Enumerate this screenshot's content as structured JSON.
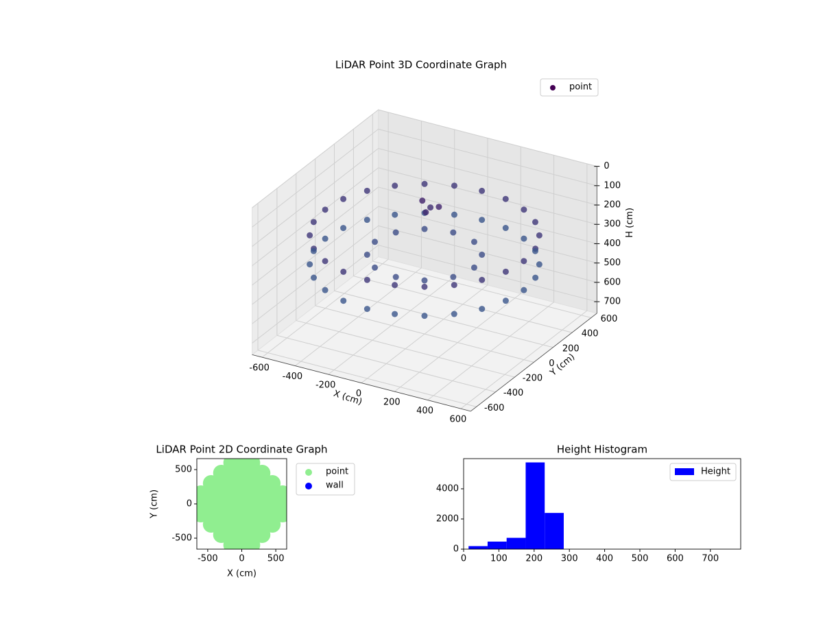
{
  "chart_data": [
    {
      "type": "scatter3d",
      "title": "LiDAR Point 3D Coordinate Graph",
      "xlabel": "X (cm)",
      "ylabel": "Y (cm)",
      "zlabel": "H (cm)",
      "xlim": [
        -660,
        660
      ],
      "ylim": [
        -660,
        660
      ],
      "zlim": [
        0,
        760
      ],
      "zinvert": true,
      "xticks": [
        -600,
        -400,
        -200,
        0,
        200,
        400,
        600
      ],
      "yticks": [
        -600,
        -400,
        -200,
        0,
        200,
        400,
        600
      ],
      "zticks": [
        0,
        100,
        200,
        300,
        400,
        500,
        600,
        700
      ],
      "grid": true,
      "legend": "upper right",
      "cmap": [
        "#440154",
        "#3b528b",
        "#21918c"
      ],
      "series": [
        {
          "name": "point",
          "x": [
            600,
            580,
            520,
            424,
            300,
            155,
            0,
            -155,
            -300,
            -424,
            -520,
            -580,
            -600,
            -580,
            -520,
            -424,
            -300,
            -155,
            0,
            155,
            300,
            424,
            520,
            580,
            600,
            580,
            520,
            424,
            300,
            155,
            0,
            -155,
            -300,
            -424,
            -520,
            -580,
            -600,
            -580,
            -520,
            -424,
            -300,
            -155,
            0,
            155,
            300,
            424,
            520,
            580,
            300,
            260,
            150,
            0,
            -150,
            -260,
            -300,
            -260,
            -150,
            0,
            150,
            260,
            -100,
            -50,
            0,
            -80
          ],
          "y": [
            0,
            155,
            300,
            424,
            520,
            580,
            600,
            580,
            520,
            424,
            300,
            155,
            0,
            -155,
            -300,
            -424,
            -520,
            -580,
            -600,
            -580,
            -520,
            -424,
            -300,
            -155,
            0,
            155,
            300,
            424,
            520,
            580,
            600,
            580,
            520,
            424,
            300,
            155,
            0,
            -155,
            -300,
            -424,
            -520,
            -580,
            -600,
            -580,
            -520,
            -424,
            -300,
            -155,
            0,
            150,
            260,
            300,
            260,
            150,
            0,
            -150,
            -260,
            -300,
            -260,
            -150,
            150,
            100,
            150,
            200
          ],
          "z": [
            250,
            250,
            250,
            250,
            250,
            250,
            250,
            250,
            250,
            250,
            250,
            250,
            250,
            250,
            250,
            250,
            250,
            250,
            250,
            250,
            250,
            250,
            250,
            250,
            400,
            400,
            400,
            400,
            400,
            400,
            400,
            400,
            400,
            400,
            400,
            400,
            400,
            400,
            400,
            400,
            400,
            400,
            400,
            400,
            400,
            400,
            400,
            400,
            350,
            350,
            350,
            350,
            350,
            350,
            350,
            350,
            350,
            350,
            350,
            350,
            150,
            180,
            160,
            200
          ]
        }
      ]
    },
    {
      "type": "scatter",
      "title": "LiDAR Point 2D Coordinate Graph",
      "xlabel": "X (cm)",
      "ylabel": "Y (cm)",
      "xlim": [
        -660,
        660
      ],
      "ylim": [
        -660,
        660
      ],
      "xticks": [
        -500,
        0,
        500
      ],
      "yticks": [
        -500,
        0,
        500
      ],
      "legend": "outside right",
      "series": [
        {
          "name": "point",
          "color": "#90ee90",
          "x": [
            -600,
            -600,
            -600,
            -450,
            -450,
            -450,
            -450,
            -450,
            -300,
            -300,
            -300,
            -300,
            -300,
            -300,
            -300,
            -150,
            -150,
            -150,
            -150,
            -150,
            -150,
            -150,
            -150,
            -150,
            0,
            0,
            0,
            0,
            0,
            0,
            0,
            0,
            0,
            150,
            150,
            150,
            150,
            150,
            150,
            150,
            150,
            150,
            300,
            300,
            300,
            300,
            300,
            300,
            300,
            450,
            450,
            450,
            450,
            450,
            600,
            600,
            600
          ],
          "y": [
            -150,
            0,
            150,
            -300,
            -150,
            0,
            150,
            300,
            -450,
            -300,
            -150,
            0,
            150,
            300,
            450,
            -600,
            -450,
            -300,
            -150,
            0,
            150,
            300,
            450,
            600,
            -600,
            -450,
            -300,
            -150,
            0,
            150,
            300,
            450,
            600,
            -600,
            -450,
            -300,
            -150,
            0,
            150,
            300,
            450,
            600,
            -450,
            -300,
            -150,
            0,
            150,
            300,
            450,
            -300,
            -150,
            0,
            150,
            300,
            -150,
            0,
            150
          ]
        },
        {
          "name": "wall",
          "color": "#0000ff",
          "x": [],
          "y": []
        }
      ]
    },
    {
      "type": "histogram",
      "title": "Height Histogram",
      "bins": [
        14,
        68,
        122,
        176,
        230,
        284,
        338,
        392,
        446,
        500,
        554,
        608,
        662,
        716,
        770
      ],
      "series": [
        {
          "name": "Height",
          "color": "#0000ff",
          "values": [
            200,
            500,
            750,
            5750,
            2400,
            0,
            0,
            0,
            0,
            0,
            0,
            0,
            0,
            0
          ]
        }
      ],
      "xlim": [
        0,
        786
      ],
      "ylim": [
        0,
        6000
      ],
      "xticks": [
        0,
        100,
        200,
        300,
        400,
        500,
        600,
        700
      ],
      "yticks": [
        0,
        2000,
        4000
      ],
      "legend": "upper right"
    }
  ]
}
